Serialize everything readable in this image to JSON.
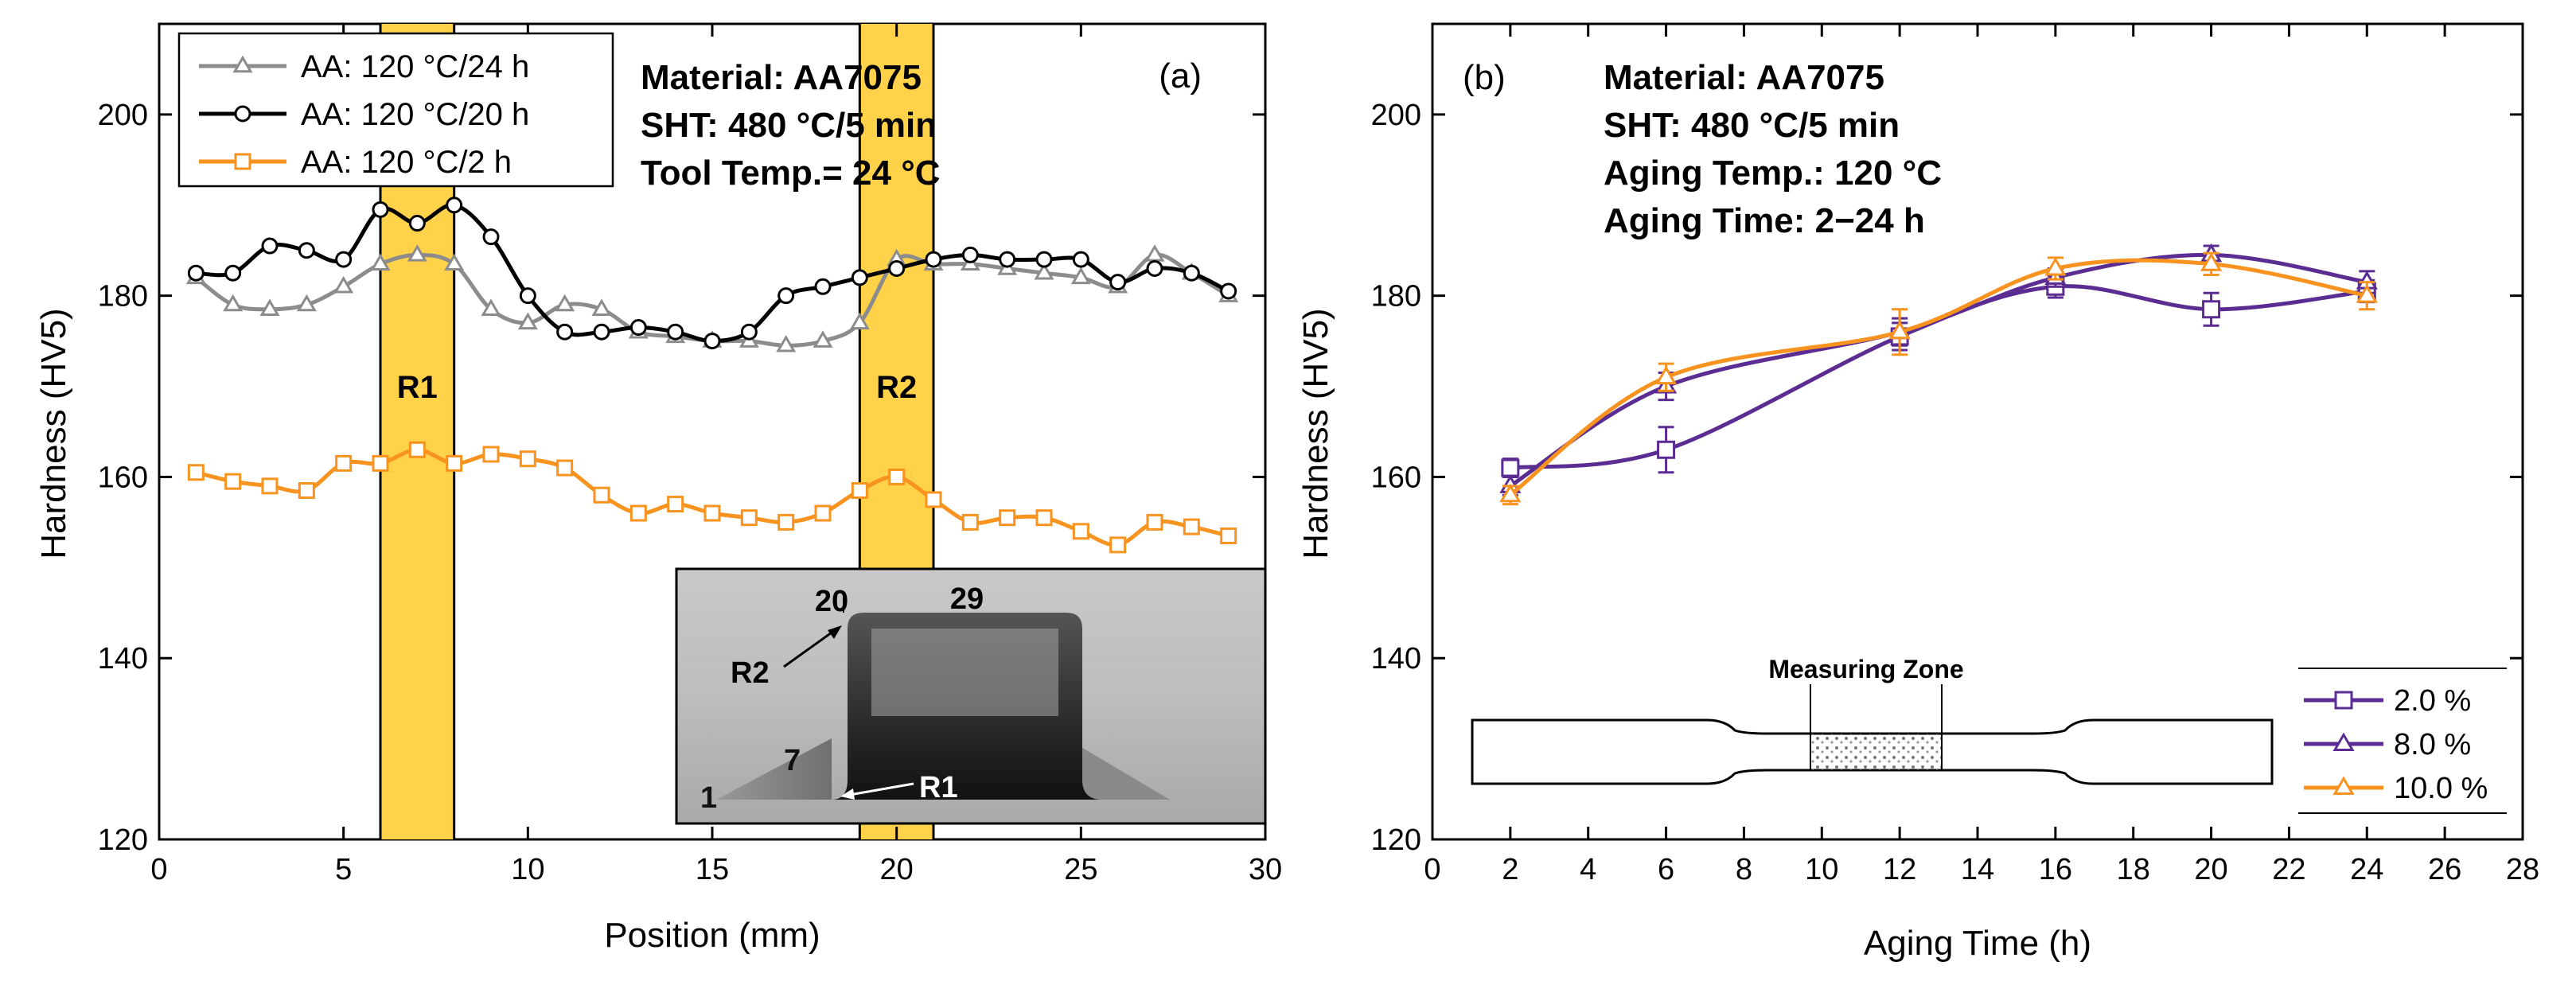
{
  "colors": {
    "grey": "#8c8c8c",
    "black": "#000000",
    "orange": "#f7931e",
    "purple": "#5b2c91",
    "band": "#ffd24a"
  },
  "chart_data": [
    {
      "type": "line",
      "panel_label": "(a)",
      "xlabel": "Position (mm)",
      "ylabel": "Hardness (HV5)",
      "xlim": [
        0,
        30
      ],
      "ylim": [
        120,
        210
      ],
      "x_ticks": [
        "0",
        "5",
        "10",
        "15",
        "20",
        "25",
        "30"
      ],
      "y_ticks": [
        "120",
        "140",
        "160",
        "180",
        "200"
      ],
      "annotations": [
        "Material: AA7075",
        "SHT: 480 °C/5 min",
        "Tool Temp.= 24 °C"
      ],
      "regions": [
        {
          "label": "R1",
          "x": [
            6,
            8
          ]
        },
        {
          "label": "R2",
          "x": [
            19,
            21
          ]
        }
      ],
      "legend_position": "top-left",
      "x": [
        1,
        2,
        3,
        4,
        5,
        6,
        7,
        8,
        9,
        10,
        11,
        12,
        13,
        14,
        15,
        16,
        17,
        18,
        19,
        20,
        21,
        22,
        23,
        24,
        25,
        26,
        27,
        28,
        29
      ],
      "series": [
        {
          "name": "AA: 120 °C/24 h",
          "color": "#8c8c8c",
          "marker": "triangle",
          "values": [
            182,
            179,
            178.5,
            179,
            181,
            183.5,
            184.5,
            183.5,
            178.5,
            177,
            179,
            178.5,
            176,
            175.5,
            175,
            175,
            174.5,
            175,
            177,
            184,
            183.5,
            183.5,
            183,
            182.5,
            182,
            181,
            184.5,
            182.5,
            180
          ]
        },
        {
          "name": "AA: 120 °C/20 h",
          "color": "#000000",
          "marker": "circle",
          "values": [
            182.5,
            182.5,
            185.5,
            185,
            184,
            189.5,
            188,
            190,
            186.5,
            180,
            176,
            176,
            176.5,
            176,
            175,
            176,
            180,
            181,
            182,
            183,
            184,
            184.5,
            184,
            184,
            184,
            181.5,
            183,
            182.5,
            180.5
          ]
        },
        {
          "name": "AA: 120 °C/2 h",
          "color": "#f7931e",
          "marker": "square",
          "values": [
            160.5,
            159.5,
            159,
            158.5,
            161.5,
            161.5,
            163,
            161.5,
            162.5,
            162,
            161,
            158,
            156,
            157,
            156,
            155.5,
            155,
            156,
            158.5,
            160,
            157.5,
            155,
            155.5,
            155.5,
            154,
            152.5,
            155,
            154.5,
            153.5
          ]
        }
      ],
      "inset": {
        "labels": [
          "20",
          "29",
          "R2",
          "7",
          "1",
          "R1"
        ]
      }
    },
    {
      "type": "scatter",
      "panel_label": "(b)",
      "xlabel": "Aging Time (h)",
      "ylabel": "Hardness (HV5)",
      "xlim": [
        0,
        28
      ],
      "ylim": [
        120,
        210
      ],
      "x_ticks": [
        "0",
        "2",
        "4",
        "6",
        "8",
        "10",
        "12",
        "14",
        "16",
        "18",
        "20",
        "22",
        "24",
        "26",
        "28"
      ],
      "y_ticks": [
        "120",
        "140",
        "160",
        "180",
        "200"
      ],
      "annotations": [
        "Material: AA7075",
        "SHT: 480 °C/5 min",
        "Aging Temp.: 120 °C",
        "Aging Time: 2−24 h"
      ],
      "legend_position": "bottom-right",
      "x": [
        2,
        6,
        12,
        16,
        20,
        24
      ],
      "series": [
        {
          "name": "2.0 %",
          "color": "#5b2c91",
          "marker": "square",
          "values": [
            161,
            163,
            175.5,
            181,
            178.5,
            180.5
          ],
          "errors": [
            1,
            2.5,
            1.5,
            1.2,
            1.8,
            1.2
          ]
        },
        {
          "name": "8.0 %",
          "color": "#5b2c91",
          "marker": "triangle",
          "values": [
            159,
            170,
            176,
            182,
            184.5,
            181.5
          ],
          "errors": [
            1,
            1.5,
            1.5,
            1,
            1,
            1.2
          ]
        },
        {
          "name": "10.0 %",
          "color": "#f7931e",
          "marker": "triangle",
          "values": [
            158,
            171,
            176,
            183,
            183.5,
            180
          ],
          "errors": [
            1,
            1.5,
            2.5,
            1.2,
            1.2,
            1.5
          ]
        }
      ],
      "specimen_label": "Measuring Zone"
    }
  ]
}
